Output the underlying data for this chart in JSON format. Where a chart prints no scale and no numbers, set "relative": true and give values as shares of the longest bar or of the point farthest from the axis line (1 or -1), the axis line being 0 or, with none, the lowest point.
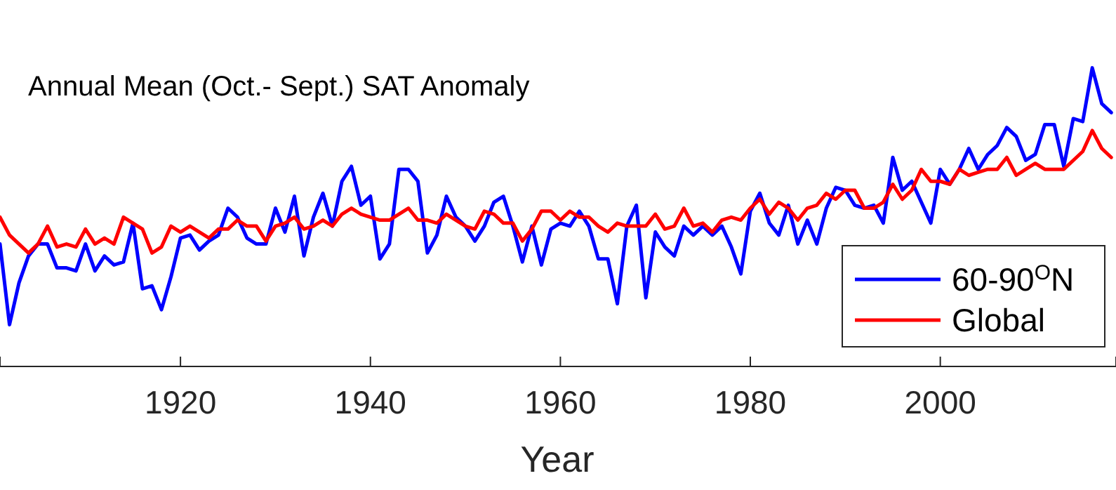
{
  "chart_data": {
    "type": "line",
    "title": "Annual Mean (Oct.- Sept.) SAT Anomaly",
    "xlabel": "Year",
    "relative": true,
    "legend": "bottom right",
    "line_style": "solid",
    "xlim": [
      1901,
      2018.5
    ],
    "xticks": [
      1920,
      1940,
      1960,
      1980,
      2000
    ],
    "x": [
      1901,
      1902,
      1903,
      1904,
      1905,
      1906,
      1907,
      1908,
      1909,
      1910,
      1911,
      1912,
      1913,
      1914,
      1915,
      1916,
      1917,
      1918,
      1919,
      1920,
      1921,
      1922,
      1923,
      1924,
      1925,
      1926,
      1927,
      1928,
      1929,
      1930,
      1931,
      1932,
      1933,
      1934,
      1935,
      1936,
      1937,
      1938,
      1939,
      1940,
      1941,
      1942,
      1943,
      1944,
      1945,
      1946,
      1947,
      1948,
      1949,
      1950,
      1951,
      1952,
      1953,
      1954,
      1955,
      1956,
      1957,
      1958,
      1959,
      1960,
      1961,
      1962,
      1963,
      1964,
      1965,
      1966,
      1967,
      1968,
      1969,
      1970,
      1971,
      1972,
      1973,
      1974,
      1975,
      1976,
      1977,
      1978,
      1979,
      1980,
      1981,
      1982,
      1983,
      1984,
      1985,
      1986,
      1987,
      1988,
      1989,
      1990,
      1991,
      1992,
      1993,
      1994,
      1995,
      1996,
      1997,
      1998,
      1999,
      2000,
      2001,
      2002,
      2003,
      2004,
      2005,
      2006,
      2007,
      2008,
      2009,
      2010,
      2011,
      2012,
      2013,
      2014,
      2015,
      2016,
      2017,
      2018
    ],
    "series": [
      {
        "name": "60-90$^{O}$N",
        "color": "#0000ff",
        "values": [
          0.41,
          0.14,
          0.28,
          0.37,
          0.41,
          0.41,
          0.33,
          0.33,
          0.32,
          0.41,
          0.32,
          0.37,
          0.34,
          0.35,
          0.48,
          0.26,
          0.27,
          0.19,
          0.3,
          0.43,
          0.44,
          0.39,
          0.42,
          0.44,
          0.53,
          0.5,
          0.43,
          0.41,
          0.41,
          0.53,
          0.45,
          0.57,
          0.37,
          0.5,
          0.58,
          0.47,
          0.62,
          0.67,
          0.54,
          0.57,
          0.36,
          0.41,
          0.66,
          0.66,
          0.62,
          0.38,
          0.44,
          0.57,
          0.5,
          0.47,
          0.42,
          0.47,
          0.55,
          0.57,
          0.47,
          0.35,
          0.47,
          0.34,
          0.46,
          0.48,
          0.47,
          0.52,
          0.47,
          0.36,
          0.36,
          0.21,
          0.47,
          0.54,
          0.23,
          0.45,
          0.4,
          0.37,
          0.47,
          0.44,
          0.47,
          0.44,
          0.47,
          0.4,
          0.31,
          0.52,
          0.58,
          0.48,
          0.44,
          0.54,
          0.41,
          0.49,
          0.41,
          0.53,
          0.6,
          0.59,
          0.54,
          0.53,
          0.54,
          0.48,
          0.7,
          0.59,
          0.62,
          0.55,
          0.48,
          0.66,
          0.61,
          0.66,
          0.73,
          0.66,
          0.71,
          0.74,
          0.8,
          0.77,
          0.69,
          0.71,
          0.81,
          0.81,
          0.67,
          0.83,
          0.82,
          1,
          0.88,
          0.85
        ]
      },
      {
        "name": "Global",
        "color": "#ff0000",
        "values": [
          0.5,
          0.44,
          0.41,
          0.38,
          0.41,
          0.47,
          0.4,
          0.41,
          0.4,
          0.46,
          0.41,
          0.43,
          0.41,
          0.5,
          0.48,
          0.46,
          0.38,
          0.4,
          0.47,
          0.45,
          0.47,
          0.45,
          0.43,
          0.46,
          0.46,
          0.49,
          0.47,
          0.47,
          0.42,
          0.47,
          0.48,
          0.5,
          0.46,
          0.47,
          0.49,
          0.47,
          0.51,
          0.53,
          0.51,
          0.5,
          0.49,
          0.49,
          0.51,
          0.53,
          0.49,
          0.49,
          0.48,
          0.51,
          0.49,
          0.47,
          0.46,
          0.52,
          0.51,
          0.48,
          0.48,
          0.42,
          0.46,
          0.52,
          0.52,
          0.49,
          0.52,
          0.5,
          0.5,
          0.47,
          0.45,
          0.48,
          0.47,
          0.47,
          0.47,
          0.51,
          0.46,
          0.47,
          0.53,
          0.47,
          0.48,
          0.45,
          0.49,
          0.5,
          0.49,
          0.53,
          0.56,
          0.51,
          0.55,
          0.53,
          0.49,
          0.53,
          0.54,
          0.58,
          0.56,
          0.59,
          0.59,
          0.53,
          0.53,
          0.55,
          0.61,
          0.56,
          0.59,
          0.66,
          0.62,
          0.62,
          0.61,
          0.66,
          0.64,
          0.65,
          0.66,
          0.66,
          0.7,
          0.64,
          0.66,
          0.68,
          0.66,
          0.66,
          0.66,
          0.69,
          0.72,
          0.79,
          0.73,
          0.7
        ]
      }
    ]
  }
}
